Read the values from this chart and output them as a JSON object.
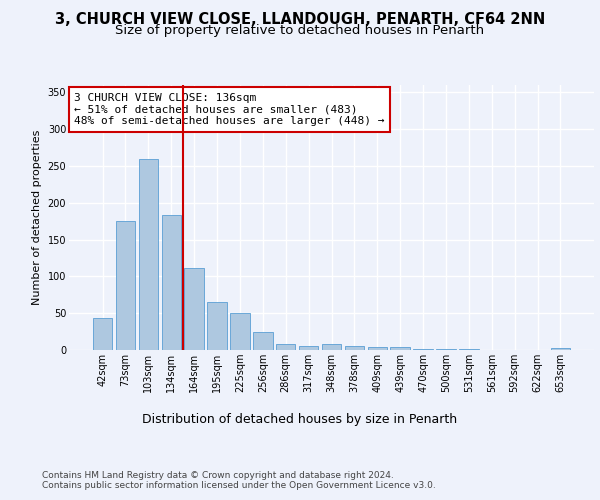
{
  "title": "3, CHURCH VIEW CLOSE, LLANDOUGH, PENARTH, CF64 2NN",
  "subtitle": "Size of property relative to detached houses in Penarth",
  "xlabel": "Distribution of detached houses by size in Penarth",
  "ylabel": "Number of detached properties",
  "categories": [
    "42sqm",
    "73sqm",
    "103sqm",
    "134sqm",
    "164sqm",
    "195sqm",
    "225sqm",
    "256sqm",
    "286sqm",
    "317sqm",
    "348sqm",
    "378sqm",
    "409sqm",
    "439sqm",
    "470sqm",
    "500sqm",
    "531sqm",
    "561sqm",
    "592sqm",
    "622sqm",
    "653sqm"
  ],
  "values": [
    44,
    175,
    260,
    183,
    112,
    65,
    50,
    25,
    8,
    6,
    8,
    5,
    4,
    4,
    2,
    1,
    1,
    0,
    0,
    0,
    3
  ],
  "bar_color": "#aec8e0",
  "bar_edge_color": "#5a9fd4",
  "red_line_x": 3.5,
  "red_line_color": "#cc0000",
  "annotation_text": "3 CHURCH VIEW CLOSE: 136sqm\n← 51% of detached houses are smaller (483)\n48% of semi-detached houses are larger (448) →",
  "annotation_box_color": "#ffffff",
  "annotation_box_edge": "#cc0000",
  "bg_color": "#eef2fb",
  "plot_bg_color": "#eef2fb",
  "grid_color": "#ffffff",
  "ylim": [
    0,
    360
  ],
  "yticks": [
    0,
    50,
    100,
    150,
    200,
    250,
    300,
    350
  ],
  "footer": "Contains HM Land Registry data © Crown copyright and database right 2024.\nContains public sector information licensed under the Open Government Licence v3.0.",
  "title_fontsize": 10.5,
  "subtitle_fontsize": 9.5,
  "xlabel_fontsize": 9,
  "ylabel_fontsize": 8,
  "tick_fontsize": 7,
  "annotation_fontsize": 8,
  "footer_fontsize": 6.5
}
